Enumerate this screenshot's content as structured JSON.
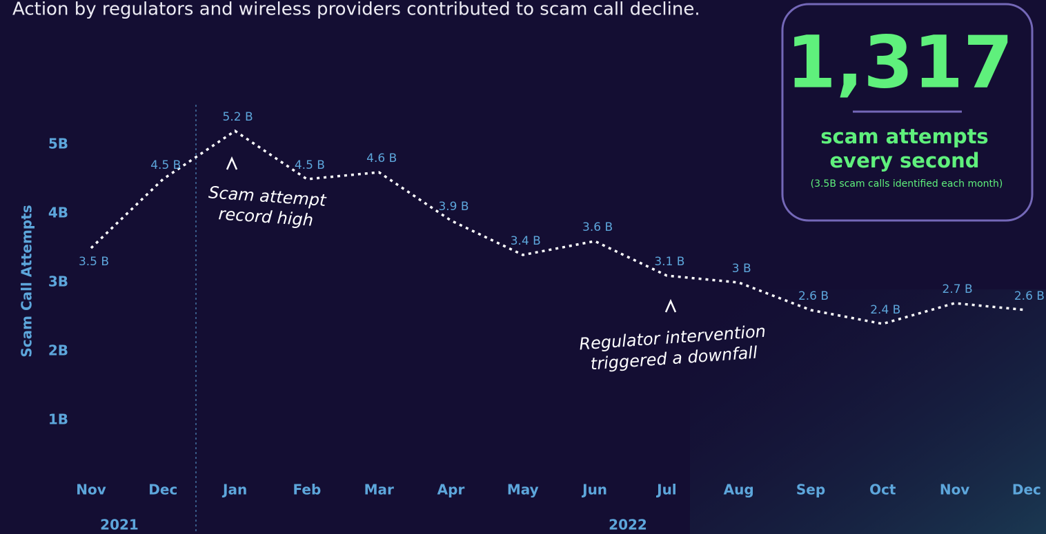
{
  "chart_data": {
    "type": "line",
    "title": "Action by regulators and wireless providers contributed to scam call decline.",
    "y_label": "Scam Call Attempts",
    "categories": [
      "Nov",
      "Dec",
      "Jan",
      "Feb",
      "Mar",
      "Apr",
      "May",
      "Jun",
      "Jul",
      "Aug",
      "Sep",
      "Oct",
      "Nov",
      "Dec"
    ],
    "year_labels": [
      "2021",
      "2022"
    ],
    "values": [
      3.5,
      4.5,
      5.2,
      4.5,
      4.6,
      3.9,
      3.4,
      3.6,
      3.1,
      3,
      2.6,
      2.4,
      2.7,
      2.6
    ],
    "value_labels": [
      "3.5 B",
      "4.5 B",
      "5.2 B",
      "4.5 B",
      "4.6 B",
      "3.9 B",
      "3.4 B",
      "3.6 B",
      "3.1 B",
      "3 B",
      "2.6 B",
      "2.4 B",
      "2.7 B",
      "2.6 B"
    ],
    "color": "#ffffff",
    "ylim": [
      0,
      6
    ],
    "yticks": [
      {
        "value": 1,
        "label": "1B"
      },
      {
        "value": 2,
        "label": "2B"
      },
      {
        "value": 3,
        "label": "3B"
      },
      {
        "value": 4,
        "label": "4B"
      },
      {
        "value": 5,
        "label": "5B"
      }
    ],
    "grid": false,
    "annotations": [
      {
        "lines": [
          "Scam attempt",
          "record high"
        ]
      },
      {
        "lines": [
          "Regulator intervention",
          "triggered a downfall"
        ]
      }
    ],
    "callout": {
      "headline": "1,317",
      "lines": [
        "scam attempts",
        "every second"
      ],
      "note": "(3.5B scam calls identified each month)"
    }
  }
}
